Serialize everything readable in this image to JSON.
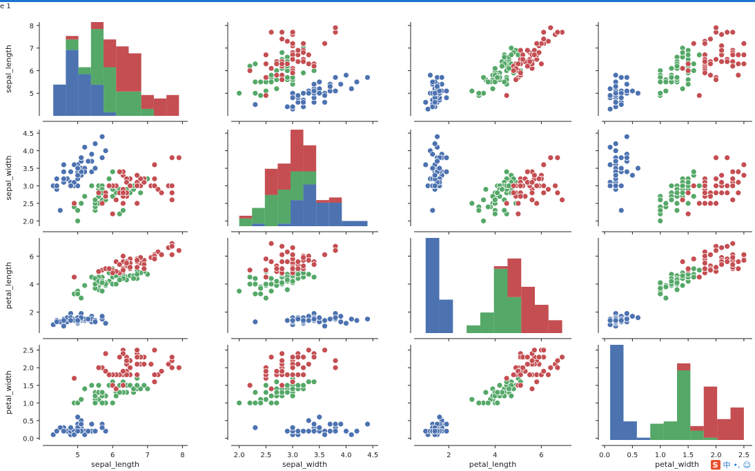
{
  "window": {
    "title": "e 1"
  },
  "colors": {
    "setosa": "#4c72b0",
    "versicolor": "#55a868",
    "virginica": "#c44e52",
    "accent": "#1e73d2"
  },
  "ime": {
    "logo": "S",
    "mode": "中",
    "punct": "•,",
    "emoji_icon": "smile-icon"
  },
  "chart_data": {
    "type": "scatter",
    "variables": [
      "sepal_length",
      "sepal_width",
      "petal_length",
      "petal_width"
    ],
    "ranges": {
      "sepal_length": [
        4.0,
        8.15
      ],
      "sepal_width": [
        1.85,
        4.6
      ],
      "petal_length": [
        0.5,
        7.3
      ],
      "petal_width": [
        -0.05,
        2.65
      ]
    },
    "ticks": {
      "sepal_length": [
        5,
        6,
        7,
        8
      ],
      "sepal_width": [
        2.0,
        2.5,
        3.0,
        3.5,
        4.0,
        4.5
      ],
      "petal_length": [
        2,
        4,
        6
      ],
      "petal_width": [
        0.0,
        0.5,
        1.0,
        1.5,
        2.0,
        2.5
      ]
    },
    "tick_labels": {
      "sepal_length": [
        "5",
        "6",
        "7",
        "8"
      ],
      "sepal_width": [
        "2.0",
        "2.5",
        "3.0",
        "3.5",
        "4.0",
        "4.5"
      ],
      "petal_length": [
        "2",
        "4",
        "6"
      ],
      "petal_width": [
        "0.0",
        "0.5",
        "1.0",
        "1.5",
        "2.0",
        "2.5"
      ]
    },
    "hist_bins": {
      "sepal_length": [
        4.3,
        4.66,
        5.02,
        5.38,
        5.74,
        6.1,
        6.46,
        6.82,
        7.18,
        7.54,
        7.9
      ],
      "sepal_width": [
        2.0,
        2.24,
        2.48,
        2.72,
        2.96,
        3.2,
        3.44,
        3.68,
        3.92,
        4.16,
        4.4
      ],
      "petal_length": [
        1.0,
        1.59,
        2.18,
        2.77,
        3.36,
        3.95,
        4.54,
        5.13,
        5.72,
        6.31,
        6.9
      ],
      "petal_width": [
        0.1,
        0.34,
        0.58,
        0.82,
        1.06,
        1.3,
        1.54,
        1.78,
        2.02,
        2.26,
        2.5
      ]
    },
    "grid": false,
    "legend": "none",
    "series": [
      {
        "color": "#4c72b0",
        "points": [
          [
            5.1,
            3.5,
            1.4,
            0.2
          ],
          [
            4.9,
            3.0,
            1.4,
            0.2
          ],
          [
            4.7,
            3.2,
            1.3,
            0.2
          ],
          [
            4.6,
            3.1,
            1.5,
            0.2
          ],
          [
            5.0,
            3.6,
            1.4,
            0.2
          ],
          [
            5.4,
            3.9,
            1.7,
            0.4
          ],
          [
            4.6,
            3.4,
            1.4,
            0.3
          ],
          [
            5.0,
            3.4,
            1.5,
            0.2
          ],
          [
            4.4,
            2.9,
            1.4,
            0.2
          ],
          [
            4.9,
            3.1,
            1.5,
            0.1
          ],
          [
            5.4,
            3.7,
            1.5,
            0.2
          ],
          [
            4.8,
            3.4,
            1.6,
            0.2
          ],
          [
            4.8,
            3.0,
            1.4,
            0.1
          ],
          [
            4.3,
            3.0,
            1.1,
            0.1
          ],
          [
            5.8,
            4.0,
            1.2,
            0.2
          ],
          [
            5.7,
            4.4,
            1.5,
            0.4
          ],
          [
            5.4,
            3.9,
            1.3,
            0.4
          ],
          [
            5.1,
            3.5,
            1.4,
            0.3
          ],
          [
            5.7,
            3.8,
            1.7,
            0.3
          ],
          [
            5.1,
            3.8,
            1.5,
            0.3
          ],
          [
            5.4,
            3.4,
            1.7,
            0.2
          ],
          [
            5.1,
            3.7,
            1.5,
            0.4
          ],
          [
            4.6,
            3.6,
            1.0,
            0.2
          ],
          [
            5.1,
            3.3,
            1.7,
            0.5
          ],
          [
            4.8,
            3.4,
            1.9,
            0.2
          ],
          [
            5.0,
            3.0,
            1.6,
            0.2
          ],
          [
            5.0,
            3.4,
            1.6,
            0.4
          ],
          [
            5.2,
            3.5,
            1.5,
            0.2
          ],
          [
            5.2,
            3.4,
            1.4,
            0.2
          ],
          [
            4.7,
            3.2,
            1.6,
            0.2
          ],
          [
            4.8,
            3.1,
            1.6,
            0.2
          ],
          [
            5.4,
            3.4,
            1.5,
            0.4
          ],
          [
            5.2,
            4.1,
            1.5,
            0.1
          ],
          [
            5.5,
            4.2,
            1.4,
            0.2
          ],
          [
            4.9,
            3.1,
            1.5,
            0.2
          ],
          [
            5.0,
            3.2,
            1.2,
            0.2
          ],
          [
            5.5,
            3.5,
            1.3,
            0.2
          ],
          [
            4.9,
            3.6,
            1.4,
            0.1
          ],
          [
            4.4,
            3.0,
            1.3,
            0.2
          ],
          [
            5.1,
            3.4,
            1.5,
            0.2
          ],
          [
            5.0,
            3.5,
            1.3,
            0.3
          ],
          [
            4.5,
            2.3,
            1.3,
            0.3
          ],
          [
            4.4,
            3.2,
            1.3,
            0.2
          ],
          [
            5.0,
            3.5,
            1.6,
            0.6
          ],
          [
            5.1,
            3.8,
            1.9,
            0.4
          ],
          [
            4.8,
            3.0,
            1.4,
            0.3
          ],
          [
            5.1,
            3.8,
            1.6,
            0.2
          ],
          [
            4.6,
            3.2,
            1.4,
            0.2
          ],
          [
            5.3,
            3.7,
            1.5,
            0.2
          ],
          [
            5.0,
            3.3,
            1.4,
            0.2
          ]
        ]
      },
      {
        "color": "#55a868",
        "points": [
          [
            7.0,
            3.2,
            4.7,
            1.4
          ],
          [
            6.4,
            3.2,
            4.5,
            1.5
          ],
          [
            6.9,
            3.1,
            4.9,
            1.5
          ],
          [
            5.5,
            2.3,
            4.0,
            1.3
          ],
          [
            6.5,
            2.8,
            4.6,
            1.5
          ],
          [
            5.7,
            2.8,
            4.5,
            1.3
          ],
          [
            6.3,
            3.3,
            4.7,
            1.6
          ],
          [
            4.9,
            2.4,
            3.3,
            1.0
          ],
          [
            6.6,
            2.9,
            4.6,
            1.3
          ],
          [
            5.2,
            2.7,
            3.9,
            1.4
          ],
          [
            5.0,
            2.0,
            3.5,
            1.0
          ],
          [
            5.9,
            3.0,
            4.2,
            1.5
          ],
          [
            6.0,
            2.2,
            4.0,
            1.0
          ],
          [
            6.1,
            2.9,
            4.7,
            1.4
          ],
          [
            5.6,
            2.9,
            3.6,
            1.3
          ],
          [
            6.7,
            3.1,
            4.4,
            1.4
          ],
          [
            5.6,
            3.0,
            4.5,
            1.5
          ],
          [
            5.8,
            2.7,
            4.1,
            1.0
          ],
          [
            6.2,
            2.2,
            4.5,
            1.5
          ],
          [
            5.6,
            2.5,
            3.9,
            1.1
          ],
          [
            5.9,
            3.2,
            4.8,
            1.8
          ],
          [
            6.1,
            2.8,
            4.0,
            1.3
          ],
          [
            6.3,
            2.5,
            4.9,
            1.5
          ],
          [
            6.1,
            2.8,
            4.7,
            1.2
          ],
          [
            6.4,
            2.9,
            4.3,
            1.3
          ],
          [
            6.6,
            3.0,
            4.4,
            1.4
          ],
          [
            6.8,
            2.8,
            4.8,
            1.4
          ],
          [
            6.7,
            3.0,
            5.0,
            1.7
          ],
          [
            6.0,
            2.9,
            4.5,
            1.5
          ],
          [
            5.7,
            2.6,
            3.5,
            1.0
          ],
          [
            5.5,
            2.4,
            3.8,
            1.1
          ],
          [
            5.5,
            2.4,
            3.7,
            1.0
          ],
          [
            5.8,
            2.7,
            3.9,
            1.2
          ],
          [
            6.0,
            2.7,
            5.1,
            1.6
          ],
          [
            5.4,
            3.0,
            4.5,
            1.5
          ],
          [
            6.0,
            3.4,
            4.5,
            1.6
          ],
          [
            6.7,
            3.1,
            4.7,
            1.5
          ],
          [
            6.3,
            2.3,
            4.4,
            1.3
          ],
          [
            5.6,
            3.0,
            4.1,
            1.3
          ],
          [
            5.5,
            2.5,
            4.0,
            1.3
          ],
          [
            5.5,
            2.6,
            4.4,
            1.2
          ],
          [
            6.1,
            3.0,
            4.6,
            1.4
          ],
          [
            5.8,
            2.6,
            4.0,
            1.2
          ],
          [
            5.0,
            2.3,
            3.3,
            1.0
          ],
          [
            5.6,
            2.7,
            4.2,
            1.3
          ],
          [
            5.7,
            3.0,
            4.2,
            1.2
          ],
          [
            5.7,
            2.9,
            4.2,
            1.3
          ],
          [
            6.2,
            2.9,
            4.3,
            1.3
          ],
          [
            5.1,
            2.5,
            3.0,
            1.1
          ],
          [
            5.7,
            2.8,
            4.1,
            1.3
          ]
        ]
      },
      {
        "color": "#c44e52",
        "points": [
          [
            6.3,
            3.3,
            6.0,
            2.5
          ],
          [
            5.8,
            2.7,
            5.1,
            1.9
          ],
          [
            7.1,
            3.0,
            5.9,
            2.1
          ],
          [
            6.3,
            2.9,
            5.6,
            1.8
          ],
          [
            6.5,
            3.0,
            5.8,
            2.2
          ],
          [
            7.6,
            3.0,
            6.6,
            2.1
          ],
          [
            4.9,
            2.5,
            4.5,
            1.7
          ],
          [
            7.3,
            2.9,
            6.3,
            1.8
          ],
          [
            6.7,
            2.5,
            5.8,
            1.8
          ],
          [
            7.2,
            3.6,
            6.1,
            2.5
          ],
          [
            6.5,
            3.2,
            5.1,
            2.0
          ],
          [
            6.4,
            2.7,
            5.3,
            1.9
          ],
          [
            6.8,
            3.0,
            5.5,
            2.1
          ],
          [
            5.7,
            2.5,
            5.0,
            2.0
          ],
          [
            5.8,
            2.8,
            5.1,
            2.4
          ],
          [
            6.4,
            3.2,
            5.3,
            2.3
          ],
          [
            6.5,
            3.0,
            5.5,
            1.8
          ],
          [
            7.7,
            3.8,
            6.7,
            2.2
          ],
          [
            7.7,
            2.6,
            6.9,
            2.3
          ],
          [
            6.0,
            2.2,
            5.0,
            1.5
          ],
          [
            6.9,
            3.2,
            5.7,
            2.3
          ],
          [
            5.6,
            2.8,
            4.9,
            2.0
          ],
          [
            7.7,
            2.8,
            6.7,
            2.0
          ],
          [
            6.3,
            2.7,
            4.9,
            1.8
          ],
          [
            6.7,
            3.3,
            5.7,
            2.1
          ],
          [
            7.2,
            3.2,
            6.0,
            1.8
          ],
          [
            6.2,
            2.8,
            4.8,
            1.8
          ],
          [
            6.1,
            3.0,
            4.9,
            1.8
          ],
          [
            6.4,
            2.8,
            5.6,
            2.1
          ],
          [
            7.2,
            3.0,
            5.8,
            1.6
          ],
          [
            7.4,
            2.8,
            6.1,
            1.9
          ],
          [
            7.9,
            3.8,
            6.4,
            2.0
          ],
          [
            6.4,
            2.8,
            5.6,
            2.2
          ],
          [
            6.3,
            2.8,
            5.1,
            1.5
          ],
          [
            6.1,
            2.6,
            5.6,
            1.4
          ],
          [
            7.7,
            3.0,
            6.1,
            2.3
          ],
          [
            6.3,
            3.4,
            5.6,
            2.4
          ],
          [
            6.4,
            3.1,
            5.5,
            1.8
          ],
          [
            6.0,
            3.0,
            4.8,
            1.8
          ],
          [
            6.9,
            3.1,
            5.4,
            2.1
          ],
          [
            6.7,
            3.1,
            5.6,
            2.4
          ],
          [
            6.9,
            3.1,
            5.1,
            2.3
          ],
          [
            5.8,
            2.7,
            5.1,
            1.9
          ],
          [
            6.8,
            3.2,
            5.9,
            2.3
          ],
          [
            6.7,
            3.3,
            5.7,
            2.5
          ],
          [
            6.7,
            3.0,
            5.2,
            2.3
          ],
          [
            6.3,
            2.5,
            5.0,
            1.9
          ],
          [
            6.5,
            3.0,
            5.2,
            2.0
          ],
          [
            6.2,
            3.4,
            5.4,
            2.3
          ],
          [
            5.9,
            3.0,
            5.1,
            1.8
          ]
        ]
      }
    ]
  }
}
